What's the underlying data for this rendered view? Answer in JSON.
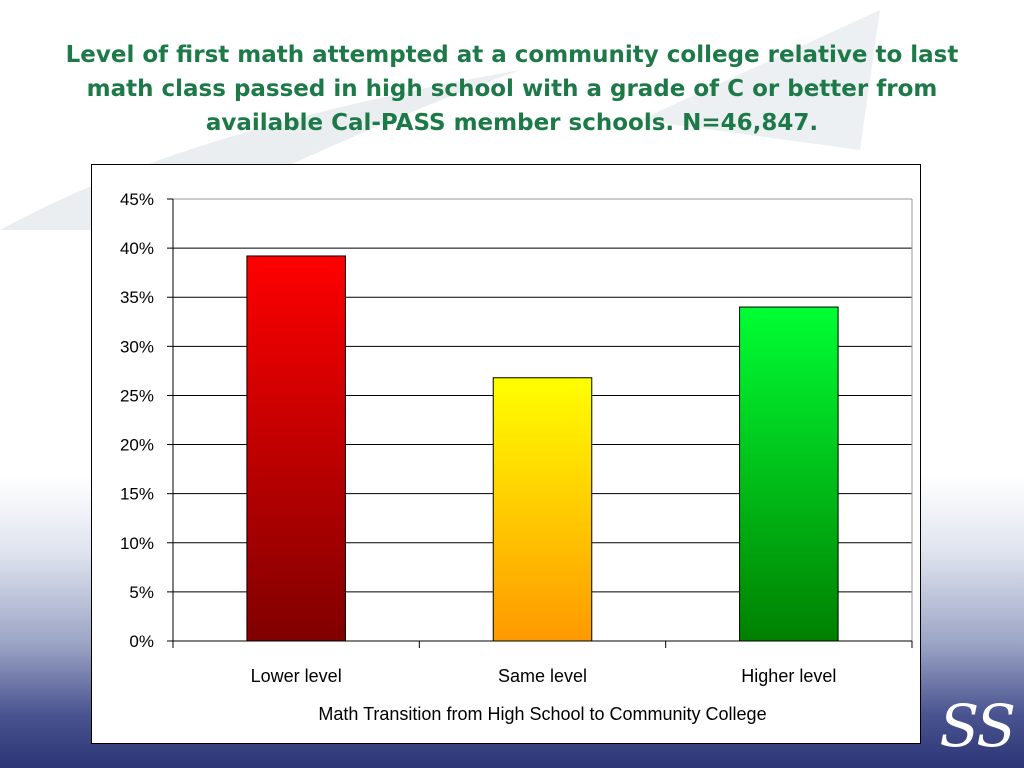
{
  "title": "Level of first math attempted at a community college relative to last math class passed in high school with a grade of C or better from available Cal-PASS member schools. N=46,847.",
  "logo_text": "Cal-PASS",
  "chart_data": {
    "type": "bar",
    "title": "",
    "xlabel": "Math Transition from High School to Community College",
    "ylabel": "",
    "categories": [
      "Lower level",
      "Same level",
      "Higher level"
    ],
    "values": [
      39.2,
      26.8,
      34.0
    ],
    "ylim": [
      0,
      45
    ],
    "yticks": [
      0,
      5,
      10,
      15,
      20,
      25,
      30,
      35,
      40,
      45
    ],
    "ytick_labels": [
      "0%",
      "5%",
      "10%",
      "15%",
      "20%",
      "25%",
      "30%",
      "35%",
      "40%",
      "45%"
    ],
    "grid": true,
    "legend": "none",
    "bar_gradients": [
      {
        "top": "#ff0000",
        "bottom": "#800000"
      },
      {
        "top": "#ffff00",
        "bottom": "#ff9900"
      },
      {
        "top": "#00ff33",
        "bottom": "#008000"
      }
    ]
  }
}
